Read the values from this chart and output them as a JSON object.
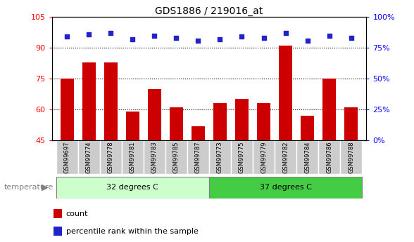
{
  "title": "GDS1886 / 219016_at",
  "samples": [
    "GSM99697",
    "GSM99774",
    "GSM99778",
    "GSM99781",
    "GSM99783",
    "GSM99785",
    "GSM99787",
    "GSM99773",
    "GSM99775",
    "GSM99779",
    "GSM99782",
    "GSM99784",
    "GSM99786",
    "GSM99788"
  ],
  "counts": [
    75,
    83,
    83,
    59,
    70,
    61,
    52,
    63,
    65,
    63,
    91,
    57,
    75,
    61
  ],
  "percentile_ranks": [
    84,
    86,
    87,
    82,
    85,
    83,
    81,
    82,
    84,
    83,
    87,
    81,
    85,
    83
  ],
  "group1_label": "32 degrees C",
  "group2_label": "37 degrees C",
  "group1_count": 7,
  "group2_count": 7,
  "ylim_left": [
    45,
    105
  ],
  "ylim_right": [
    0,
    100
  ],
  "yticks_left": [
    45,
    60,
    75,
    90,
    105
  ],
  "yticks_right": [
    0,
    25,
    50,
    75,
    100
  ],
  "bar_color": "#cc0000",
  "dot_color": "#2222cc",
  "group1_bg": "#ccffcc",
  "group2_bg": "#44cc44",
  "tick_bg": "#cccccc",
  "legend_count_label": "count",
  "legend_pct_label": "percentile rank within the sample",
  "temperature_label": "temperature",
  "bar_bottom": 45
}
